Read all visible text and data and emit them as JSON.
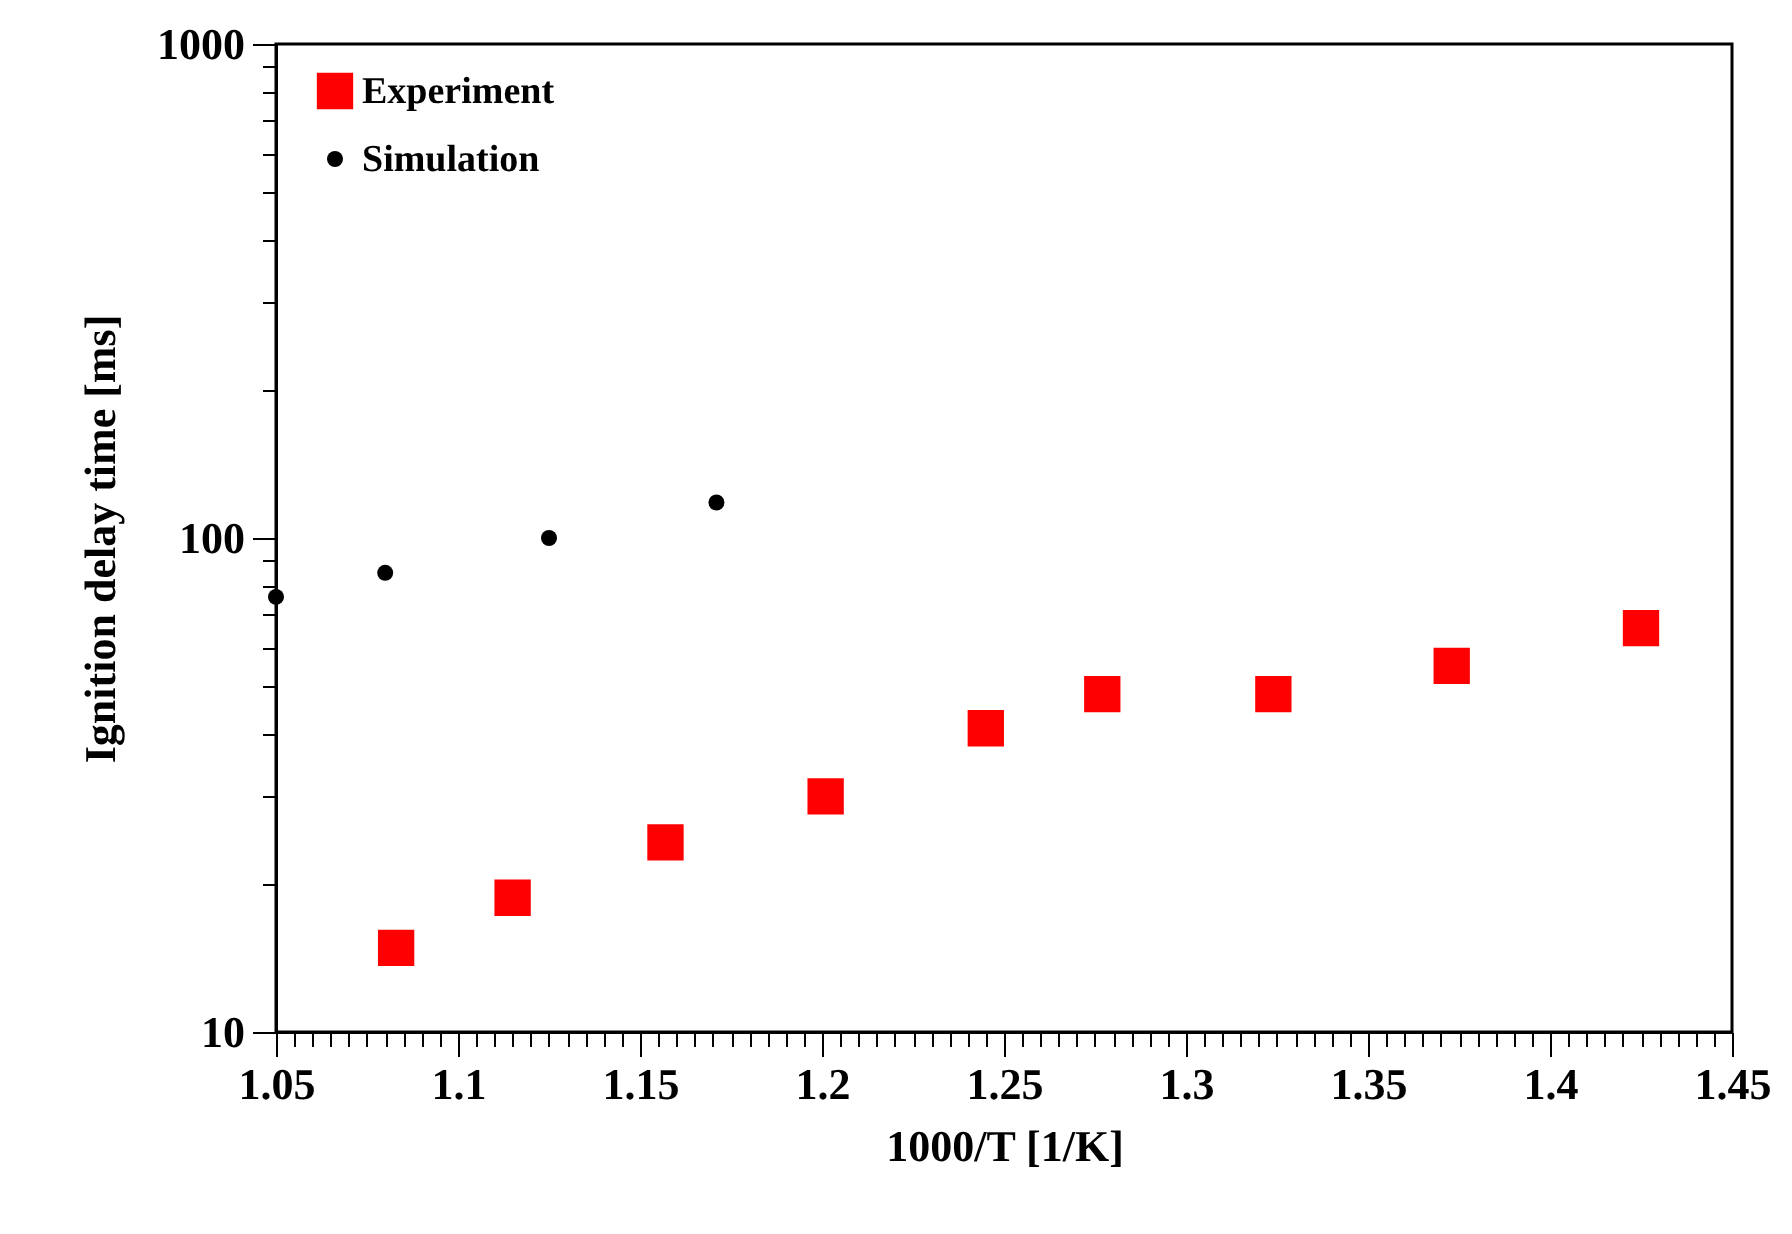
{
  "chart_data": {
    "type": "scatter",
    "xlabel": "1000/T [1/K]",
    "ylabel": "Ignition delay time [ms]",
    "log": "y",
    "legend": "top left",
    "grid": false,
    "xlim": [
      1.05,
      1.45
    ],
    "ylim": [
      10,
      1000
    ],
    "xticks": [
      1.05,
      {
        "value": 1.055,
        "label": null
      },
      {
        "value": 1.06,
        "label": null
      },
      {
        "value": 1.065,
        "label": null
      },
      {
        "value": 1.07,
        "label": null
      },
      {
        "value": 1.075,
        "label": null
      },
      {
        "value": 1.08,
        "label": null
      },
      {
        "value": 1.085,
        "label": null
      },
      {
        "value": 1.09,
        "label": null
      },
      {
        "value": 1.095,
        "label": null
      },
      1.1,
      {
        "value": 1.105,
        "label": null
      },
      {
        "value": 1.11,
        "label": null
      },
      {
        "value": 1.115,
        "label": null
      },
      {
        "value": 1.12,
        "label": null
      },
      {
        "value": 1.125,
        "label": null
      },
      {
        "value": 1.13,
        "label": null
      },
      {
        "value": 1.135,
        "label": null
      },
      {
        "value": 1.14,
        "label": null
      },
      {
        "value": 1.145,
        "label": null
      },
      1.15,
      {
        "value": 1.155,
        "label": null
      },
      {
        "value": 1.16,
        "label": null
      },
      {
        "value": 1.165,
        "label": null
      },
      {
        "value": 1.17,
        "label": null
      },
      {
        "value": 1.175,
        "label": null
      },
      {
        "value": 1.18,
        "label": null
      },
      {
        "value": 1.185,
        "label": null
      },
      {
        "value": 1.19,
        "label": null
      },
      {
        "value": 1.195,
        "label": null
      },
      1.2,
      {
        "value": 1.205,
        "label": null
      },
      {
        "value": 1.21,
        "label": null
      },
      {
        "value": 1.215,
        "label": null
      },
      {
        "value": 1.22,
        "label": null
      },
      {
        "value": 1.225,
        "label": null
      },
      {
        "value": 1.23,
        "label": null
      },
      {
        "value": 1.235,
        "label": null
      },
      {
        "value": 1.24,
        "label": null
      },
      {
        "value": 1.245,
        "label": null
      },
      1.25,
      {
        "value": 1.255,
        "label": null
      },
      {
        "value": 1.26,
        "label": null
      },
      {
        "value": 1.265,
        "label": null
      },
      {
        "value": 1.27,
        "label": null
      },
      {
        "value": 1.275,
        "label": null
      },
      {
        "value": 1.28,
        "label": null
      },
      {
        "value": 1.285,
        "label": null
      },
      {
        "value": 1.29,
        "label": null
      },
      {
        "value": 1.295,
        "label": null
      },
      1.3,
      {
        "value": 1.305,
        "label": null
      },
      {
        "value": 1.31,
        "label": null
      },
      {
        "value": 1.315,
        "label": null
      },
      {
        "value": 1.32,
        "label": null
      },
      {
        "value": 1.325,
        "label": null
      },
      {
        "value": 1.33,
        "label": null
      },
      {
        "value": 1.335,
        "label": null
      },
      {
        "value": 1.34,
        "label": null
      },
      {
        "value": 1.345,
        "label": null
      },
      1.35,
      {
        "value": 1.355,
        "label": null
      },
      {
        "value": 1.36,
        "label": null
      },
      {
        "value": 1.365,
        "label": null
      },
      {
        "value": 1.37,
        "label": null
      },
      {
        "value": 1.375,
        "label": null
      },
      {
        "value": 1.38,
        "label": null
      },
      {
        "value": 1.385,
        "label": null
      },
      {
        "value": 1.39,
        "label": null
      },
      {
        "value": 1.395,
        "label": null
      },
      1.4,
      {
        "value": 1.405,
        "label": null
      },
      {
        "value": 1.41,
        "label": null
      },
      {
        "value": 1.415,
        "label": null
      },
      {
        "value": 1.42,
        "label": null
      },
      {
        "value": 1.425,
        "label": null
      },
      {
        "value": 1.43,
        "label": null
      },
      {
        "value": 1.435,
        "label": null
      },
      {
        "value": 1.44,
        "label": null
      },
      {
        "value": 1.445,
        "label": null
      },
      1.45
    ],
    "yticks": [
      10,
      {
        "value": 20,
        "label": null
      },
      {
        "value": 30,
        "label": null
      },
      {
        "value": 40,
        "label": null
      },
      {
        "value": 50,
        "label": null
      },
      {
        "value": 60,
        "label": null
      },
      {
        "value": 70,
        "label": null
      },
      {
        "value": 80,
        "label": null
      },
      {
        "value": 90,
        "label": null
      },
      100,
      {
        "value": 200,
        "label": null
      },
      {
        "value": 300,
        "label": null
      },
      {
        "value": 400,
        "label": null
      },
      {
        "value": 500,
        "label": null
      },
      {
        "value": 600,
        "label": null
      },
      {
        "value": 700,
        "label": null
      },
      {
        "value": 800,
        "label": null
      },
      {
        "value": 900,
        "label": null
      },
      1000
    ],
    "series": [
      {
        "name": "Experiment",
        "color": "#ff0000",
        "marker": "square",
        "x": [
          1.083,
          1.115,
          1.157,
          1.201,
          1.245,
          1.277,
          1.324,
          1.373,
          1.425
        ],
        "values": [
          14.8,
          18.7,
          24.2,
          30.0,
          41.2,
          48.3,
          48.3,
          55.1,
          65.7
        ]
      },
      {
        "name": "Simulation",
        "color": "#000000",
        "marker": "circle",
        "x": [
          1.05,
          1.08,
          1.125,
          1.171
        ],
        "values": [
          76,
          85,
          100,
          118
        ]
      }
    ]
  }
}
